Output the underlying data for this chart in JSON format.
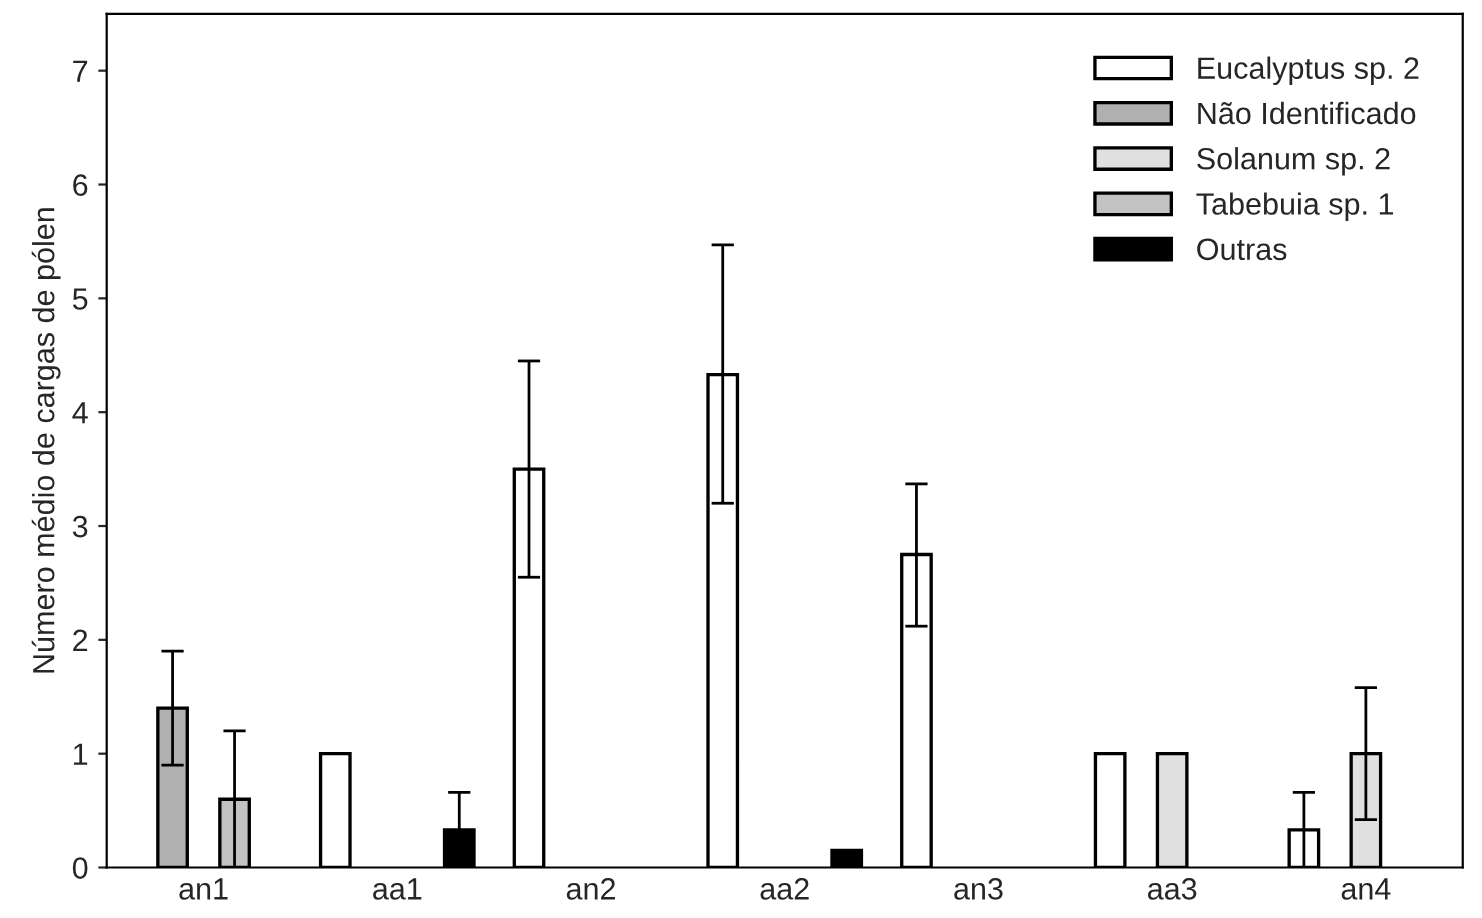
{
  "chart_data": {
    "type": "bar",
    "ylabel": "Número médio de cargas de pólen",
    "categories": [
      "an1",
      "aa1",
      "an2",
      "aa2",
      "an3",
      "aa3",
      "an4"
    ],
    "series": [
      {
        "name": "Eucalyptus sp. 2",
        "color": "#ffffff",
        "values": [
          0,
          1.0,
          3.5,
          4.33,
          2.75,
          1.0,
          0.33
        ],
        "errors": [
          null,
          null,
          [
            2.55,
            4.45
          ],
          [
            3.2,
            5.47
          ],
          [
            2.12,
            3.37
          ],
          null,
          0.33
        ]
      },
      {
        "name": "Não Identificado",
        "color": "#b0b0b0",
        "values": [
          1.4,
          0,
          0,
          0,
          0,
          0,
          0
        ],
        "errors": [
          [
            0.9,
            1.9
          ],
          null,
          null,
          null,
          null,
          null,
          null
        ]
      },
      {
        "name": "Solanum sp. 2",
        "color": "#e0e0e0",
        "values": [
          0,
          0,
          0,
          0,
          0,
          1.0,
          1.0
        ],
        "errors": [
          null,
          null,
          null,
          null,
          null,
          null,
          [
            0.42,
            1.58
          ]
        ]
      },
      {
        "name": "Tabebuia sp. 1",
        "color": "#c2c2c2",
        "values": [
          0.6,
          0,
          0,
          0,
          0,
          0,
          0
        ],
        "errors": [
          0.6,
          null,
          null,
          null,
          null,
          null,
          null
        ]
      },
      {
        "name": "Outras",
        "color": "#000000",
        "values": [
          0,
          0.33,
          0,
          0.15,
          0,
          0,
          0
        ],
        "errors": [
          null,
          0.33,
          null,
          null,
          null,
          null,
          null
        ]
      }
    ],
    "ylim": [
      0,
      7.5
    ],
    "yticks": [
      0,
      1,
      2,
      3,
      4,
      5,
      6,
      7
    ],
    "grid": false,
    "legend": "top right"
  }
}
